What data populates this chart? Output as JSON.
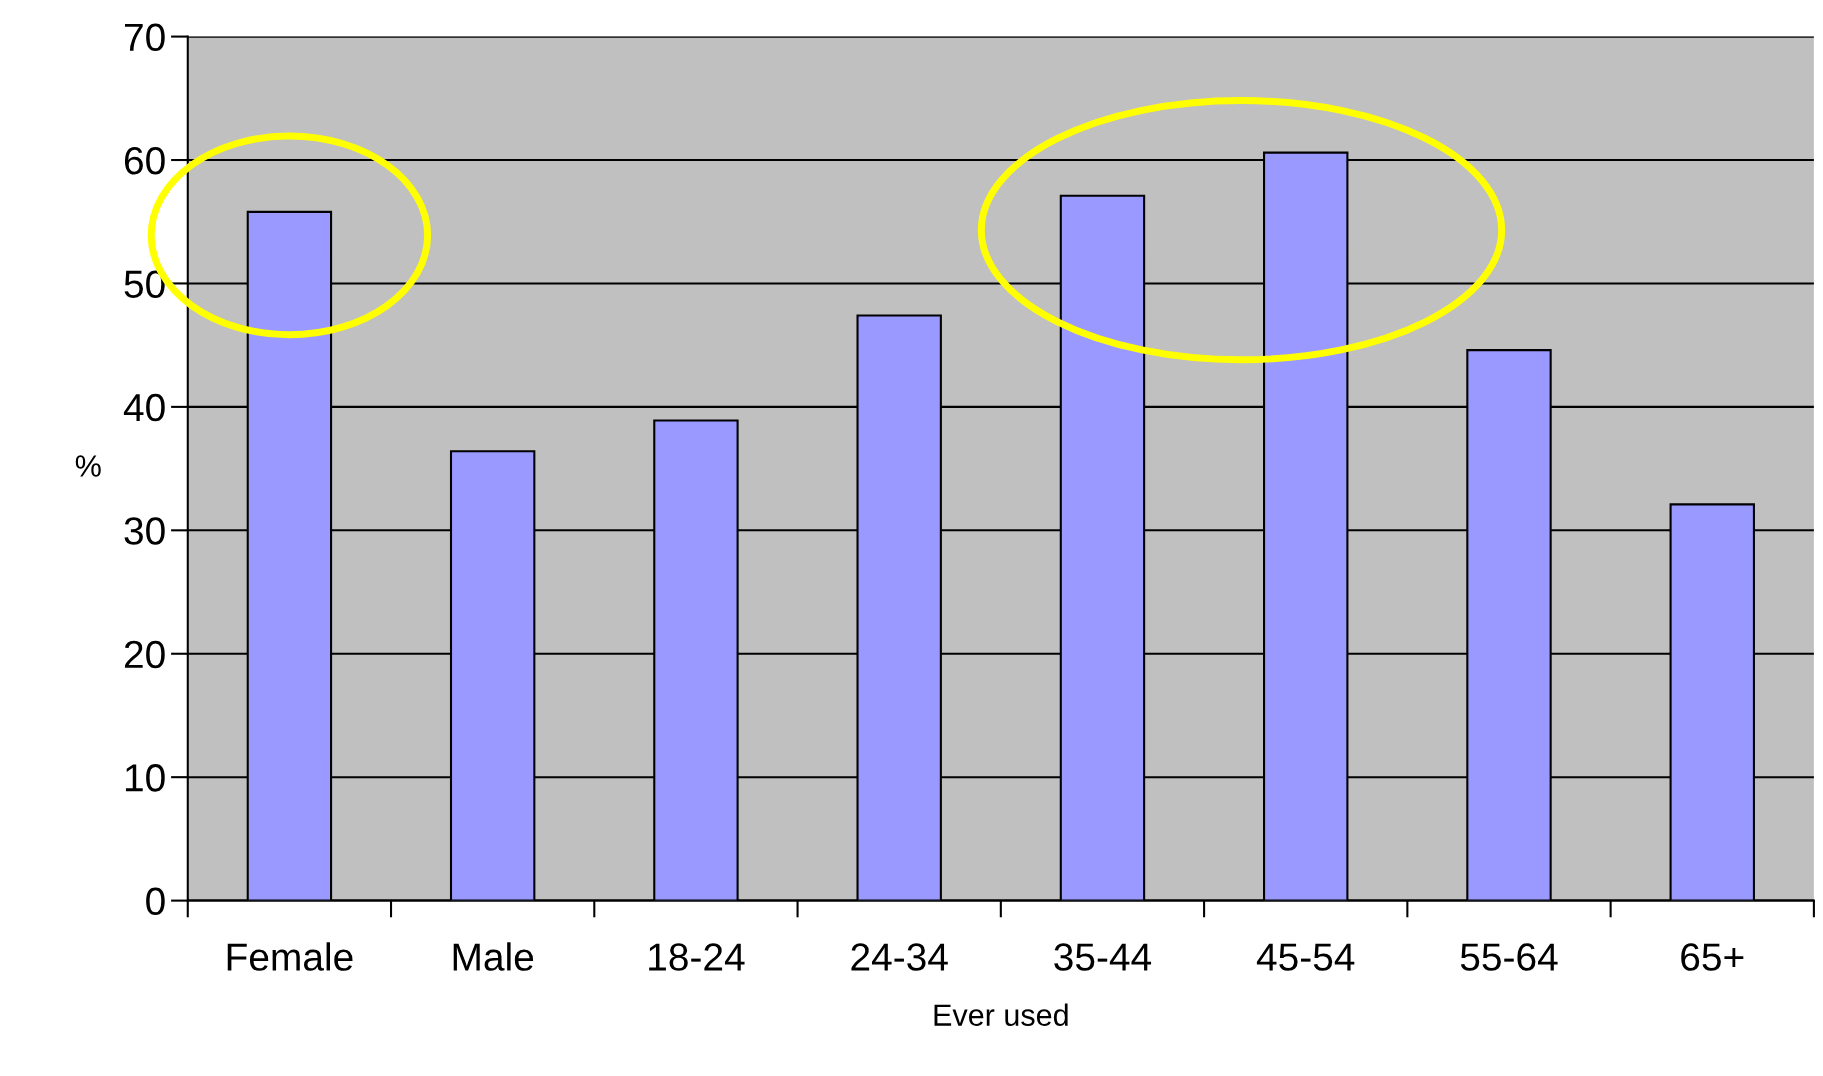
{
  "chart_data": {
    "type": "bar",
    "categories": [
      "Female",
      "Male",
      "18-24",
      "24-34",
      "35-44",
      "45-54",
      "55-64",
      "65+"
    ],
    "values": [
      55.8,
      36.4,
      38.9,
      47.4,
      57.1,
      60.6,
      44.6,
      32.1
    ],
    "color": "#9999ff",
    "xlabel": "Ever used",
    "ylabel": "%",
    "ylim": [
      0,
      70
    ],
    "yticks": [
      0,
      10,
      20,
      30,
      40,
      50,
      60,
      70
    ],
    "grid": "y",
    "legend": false
  }
}
